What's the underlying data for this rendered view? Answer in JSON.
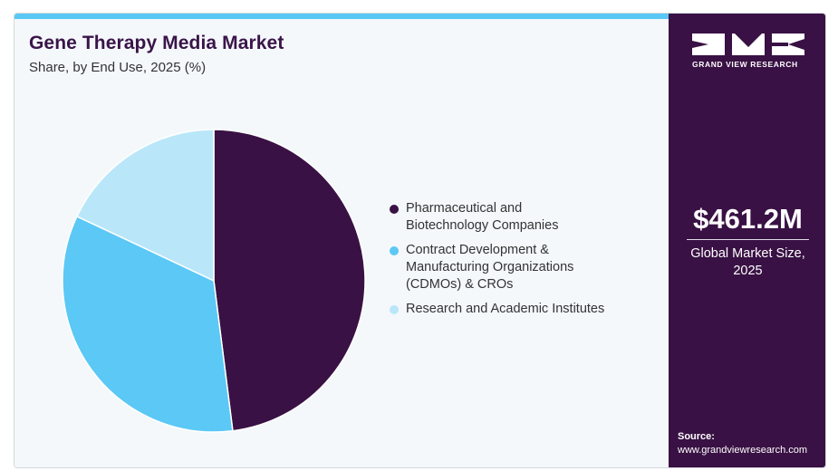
{
  "header": {
    "title": "Gene Therapy Media Market",
    "subtitle": "Share, by End Use, 2025 (%)"
  },
  "colors": {
    "accent_bar": "#5ac8f5",
    "title": "#3a1449",
    "right_panel": "#391144",
    "left_panel": "#f4f8fb"
  },
  "chart_data": {
    "type": "pie",
    "title": "Gene Therapy Media Market",
    "subtitle": "Share, by End Use, 2025 (%)",
    "legend_position": "right",
    "start_angle": "12 o'clock, clockwise",
    "categories": [
      "Pharmaceutical and Biotechnology Companies",
      "Contract Development & Manufacturing Organizations (CDMOs) & CROs",
      "Research and Academic Institutes"
    ],
    "values": [
      48,
      34,
      18
    ],
    "colors": [
      "#391144",
      "#5bc8f5",
      "#b9e7f9"
    ]
  },
  "legend": {
    "items": [
      {
        "lines": [
          "Pharmaceutical and",
          "Biotechnology Companies"
        ]
      },
      {
        "lines": [
          "Contract Development &",
          "Manufacturing Organizations",
          "(CDMOs) & CROs"
        ]
      },
      {
        "lines": [
          "Research and Academic Institutes"
        ]
      }
    ]
  },
  "sidebar": {
    "logo_icon": "gvr-logo-icon",
    "logo_text": "GRAND VIEW RESEARCH",
    "market_value": "$461.2M",
    "market_label_line1": "Global Market Size,",
    "market_label_line2": "2025",
    "source_label": "Source:",
    "source_url": "www.grandviewresearch.com"
  }
}
